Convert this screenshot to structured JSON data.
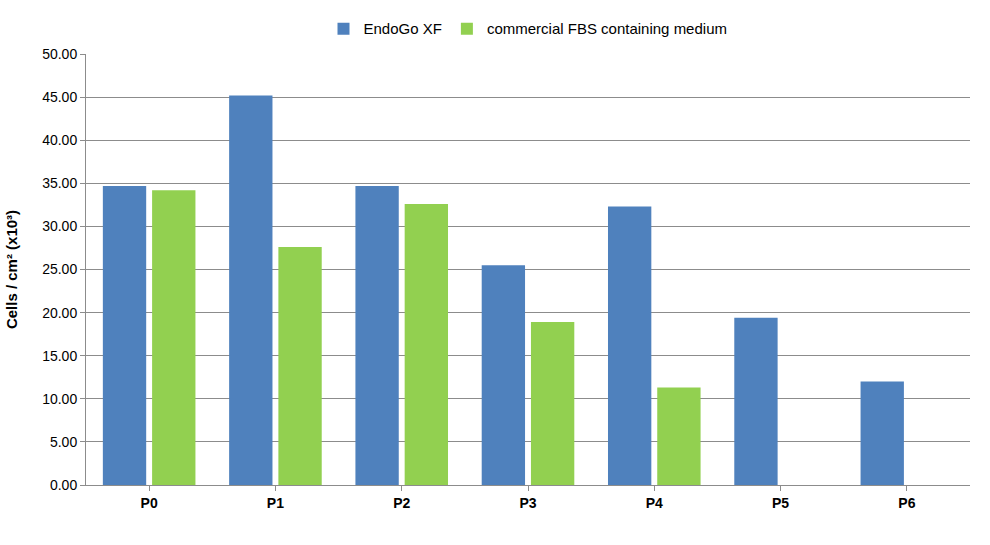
{
  "chart_data": {
    "type": "bar",
    "y_label": "Cells / cm² (x10³)",
    "categories": [
      "P0",
      "P1",
      "P2",
      "P3",
      "P4",
      "P5",
      "P6"
    ],
    "series": [
      {
        "name": "EndoGo XF",
        "color": "#4f81bd",
        "values": [
          34.7,
          45.2,
          34.7,
          25.5,
          32.3,
          19.4,
          12.0
        ]
      },
      {
        "name": "commercial FBS containing medium",
        "color": "#92d050",
        "values": [
          34.2,
          27.6,
          32.6,
          18.9,
          11.3,
          null,
          null
        ]
      }
    ],
    "ylim": [
      0,
      50
    ],
    "yticks": [
      {
        "value": 0,
        "label": "0.00"
      },
      {
        "value": 5,
        "label": "5.00"
      },
      {
        "value": 10,
        "label": "10.00"
      },
      {
        "value": 15,
        "label": "15.00"
      },
      {
        "value": 20,
        "label": "20.00"
      },
      {
        "value": 25,
        "label": "25.00"
      },
      {
        "value": 30,
        "label": "30.00"
      },
      {
        "value": 35,
        "label": "35.00"
      },
      {
        "value": 40,
        "label": "40.00"
      },
      {
        "value": 45,
        "label": "45.00"
      },
      {
        "value": 50,
        "label": "50.00"
      }
    ],
    "grid": true,
    "legend": "top"
  }
}
